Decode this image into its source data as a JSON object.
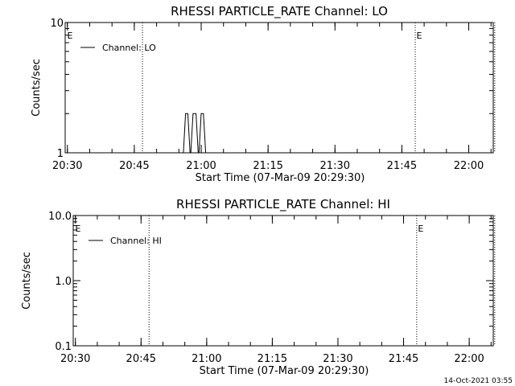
{
  "footer_timestamp": "14-Oct-2021 03:55",
  "colors": {
    "background": "#ffffff",
    "foreground": "#000000"
  },
  "chart_data": [
    {
      "type": "line",
      "title": "RHESSI PARTICLE_RATE Channel: LO",
      "xlabel": "Start Time (07-Mar-09 20:29:30)",
      "ylabel": "Counts/sec",
      "y_scale": "log",
      "ylim": [
        1,
        10
      ],
      "y_ticks": [
        {
          "value": 1,
          "label": "1"
        },
        {
          "value": 10,
          "label": "10"
        }
      ],
      "x_ticks": [
        {
          "value": "20:30",
          "label": "20:30"
        },
        {
          "value": "20:45",
          "label": "20:45"
        },
        {
          "value": "21:00",
          "label": "21:00"
        },
        {
          "value": "21:15",
          "label": "21:15"
        },
        {
          "value": "21:30",
          "label": "21:30"
        },
        {
          "value": "21:45",
          "label": "21:45"
        },
        {
          "value": "22:00",
          "label": "22:00"
        }
      ],
      "xlim": [
        "20:29:30",
        "22:05:30"
      ],
      "legend": {
        "position": "top-left",
        "entries": [
          "Channel: LO"
        ]
      },
      "markers": [
        {
          "time": "20:46:50",
          "label": "E",
          "label_side": "left"
        },
        {
          "time": "21:48:00",
          "label": "E",
          "label_side": "right"
        },
        {
          "time": "22:05:50",
          "label": "",
          "label_side": "right"
        }
      ],
      "series": [
        {
          "name": "Channel: LO",
          "points": [
            [
              "20:29:40",
              1
            ],
            [
              "20:56:00",
              1
            ],
            [
              "20:56:30",
              2
            ],
            [
              "20:57:00",
              2
            ],
            [
              "20:57:30",
              1
            ],
            [
              "20:57:40",
              1
            ],
            [
              "20:58:10",
              2
            ],
            [
              "20:58:50",
              2
            ],
            [
              "20:59:20",
              1
            ],
            [
              "20:59:30",
              1
            ],
            [
              "21:00:00",
              2
            ],
            [
              "21:00:30",
              2
            ],
            [
              "21:01:00",
              1
            ],
            [
              "22:05:20",
              1
            ]
          ]
        }
      ]
    },
    {
      "type": "line",
      "title": "RHESSI PARTICLE_RATE Channel: HI",
      "xlabel": "Start Time (07-Mar-09 20:29:30)",
      "ylabel": "Counts/sec",
      "y_scale": "log",
      "ylim": [
        0.1,
        10
      ],
      "y_ticks": [
        {
          "value": 0.1,
          "label": "0.1"
        },
        {
          "value": 1,
          "label": "1.0"
        },
        {
          "value": 10,
          "label": "10.0"
        }
      ],
      "x_ticks": [
        {
          "value": "20:30",
          "label": "20:30"
        },
        {
          "value": "20:45",
          "label": "20:45"
        },
        {
          "value": "21:00",
          "label": "21:00"
        },
        {
          "value": "21:15",
          "label": "21:15"
        },
        {
          "value": "21:30",
          "label": "21:30"
        },
        {
          "value": "21:45",
          "label": "21:45"
        },
        {
          "value": "22:00",
          "label": "22:00"
        }
      ],
      "xlim": [
        "20:29:30",
        "22:05:30"
      ],
      "legend": {
        "position": "top-left",
        "entries": [
          "Channel: HI"
        ]
      },
      "markers": [
        {
          "time": "20:46:50",
          "label": "E",
          "label_side": "left"
        },
        {
          "time": "21:48:00",
          "label": "E",
          "label_side": "right"
        },
        {
          "time": "22:05:50",
          "label": "",
          "label_side": "right"
        }
      ],
      "series": [
        {
          "name": "Channel: HI",
          "points": []
        }
      ]
    }
  ]
}
